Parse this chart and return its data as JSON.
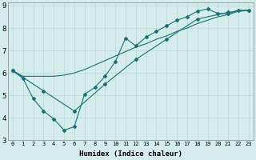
{
  "xlabel": "Humidex (Indice chaleur)",
  "bg_color": "#d4ecec",
  "line_color": "#1a7070",
  "xlim": [
    -0.5,
    23.5
  ],
  "ylim": [
    3,
    9.15
  ],
  "xticks": [
    0,
    1,
    2,
    3,
    4,
    5,
    6,
    7,
    8,
    9,
    10,
    11,
    12,
    13,
    14,
    15,
    16,
    17,
    18,
    19,
    20,
    21,
    22,
    23
  ],
  "yticks": [
    3,
    4,
    5,
    6,
    7,
    8,
    9
  ],
  "grid_color": "#b8d8d8",
  "series": [
    {
      "x": [
        0,
        3,
        6,
        9,
        12,
        15,
        18,
        21,
        23
      ],
      "y": [
        6.1,
        5.2,
        4.3,
        5.5,
        6.6,
        7.5,
        8.4,
        8.7,
        8.8
      ]
    },
    {
      "x": [
        0,
        1,
        2,
        3,
        4,
        5,
        6,
        7,
        8,
        9,
        10,
        11,
        12,
        13,
        14,
        15,
        16,
        17,
        18,
        19,
        20,
        21,
        22,
        23
      ],
      "y": [
        6.1,
        5.75,
        4.85,
        4.3,
        3.95,
        3.45,
        3.6,
        5.05,
        5.35,
        5.85,
        6.5,
        7.55,
        7.2,
        7.6,
        7.85,
        8.1,
        8.35,
        8.5,
        8.75,
        8.85,
        8.65,
        8.65,
        8.8,
        8.78
      ]
    },
    {
      "x": [
        0,
        1,
        2,
        3,
        4,
        5,
        6,
        7,
        8,
        9,
        10,
        11,
        12,
        13,
        14,
        15,
        16,
        17,
        18,
        19,
        20,
        21,
        22,
        23
      ],
      "y": [
        6.1,
        5.85,
        5.85,
        5.85,
        5.85,
        5.9,
        6.0,
        6.15,
        6.35,
        6.55,
        6.75,
        6.95,
        7.15,
        7.3,
        7.5,
        7.65,
        7.85,
        8.0,
        8.2,
        8.35,
        8.5,
        8.6,
        8.75,
        8.78
      ]
    }
  ]
}
